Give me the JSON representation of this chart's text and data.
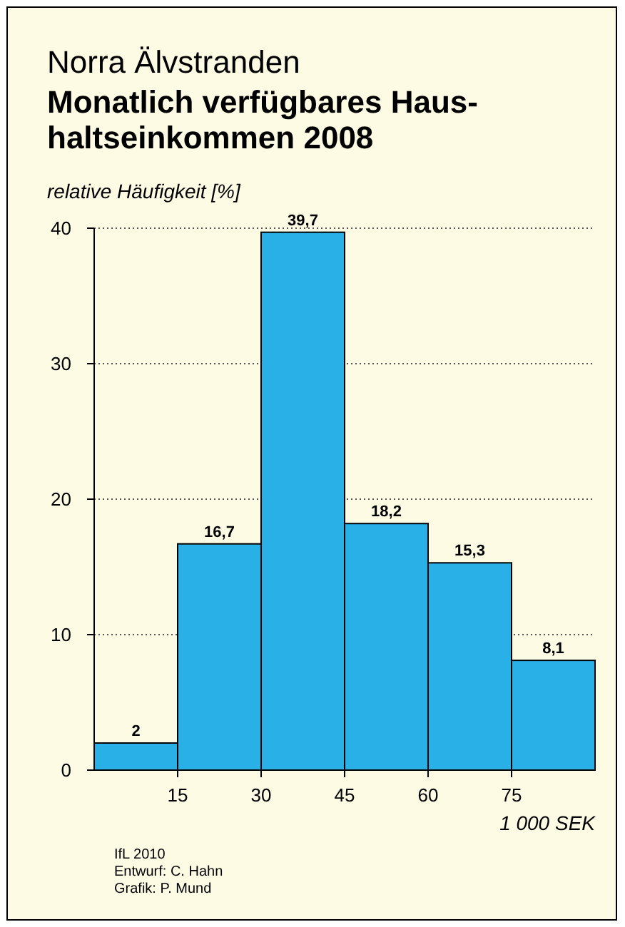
{
  "chart_data": {
    "type": "histogram",
    "title": "Norra Älvstranden",
    "subtitle": "Monatlich verfügbares Haus-\nhaltseinkommen 2008",
    "ylabel": "relative Häufigkeit [%]",
    "xlabel": "1 000 SEK",
    "bins": [
      0,
      15,
      30,
      45,
      60,
      75,
      90
    ],
    "values": [
      2,
      16.7,
      39.7,
      18.2,
      15.3,
      8.1
    ],
    "value_labels": [
      "2",
      "16,7",
      "39,7",
      "18,2",
      "15,3",
      "8,1"
    ],
    "color": "#29b0e6",
    "xlim": [
      0,
      90
    ],
    "xticks": [
      15,
      30,
      45,
      60,
      75
    ],
    "ylim": [
      0,
      40
    ],
    "yticks": [
      0,
      10,
      20,
      30,
      40
    ],
    "grid": "y",
    "annotations": [
      "IfL 2010",
      "Entwurf: C. Hahn",
      "Grafik: P. Mund"
    ]
  }
}
